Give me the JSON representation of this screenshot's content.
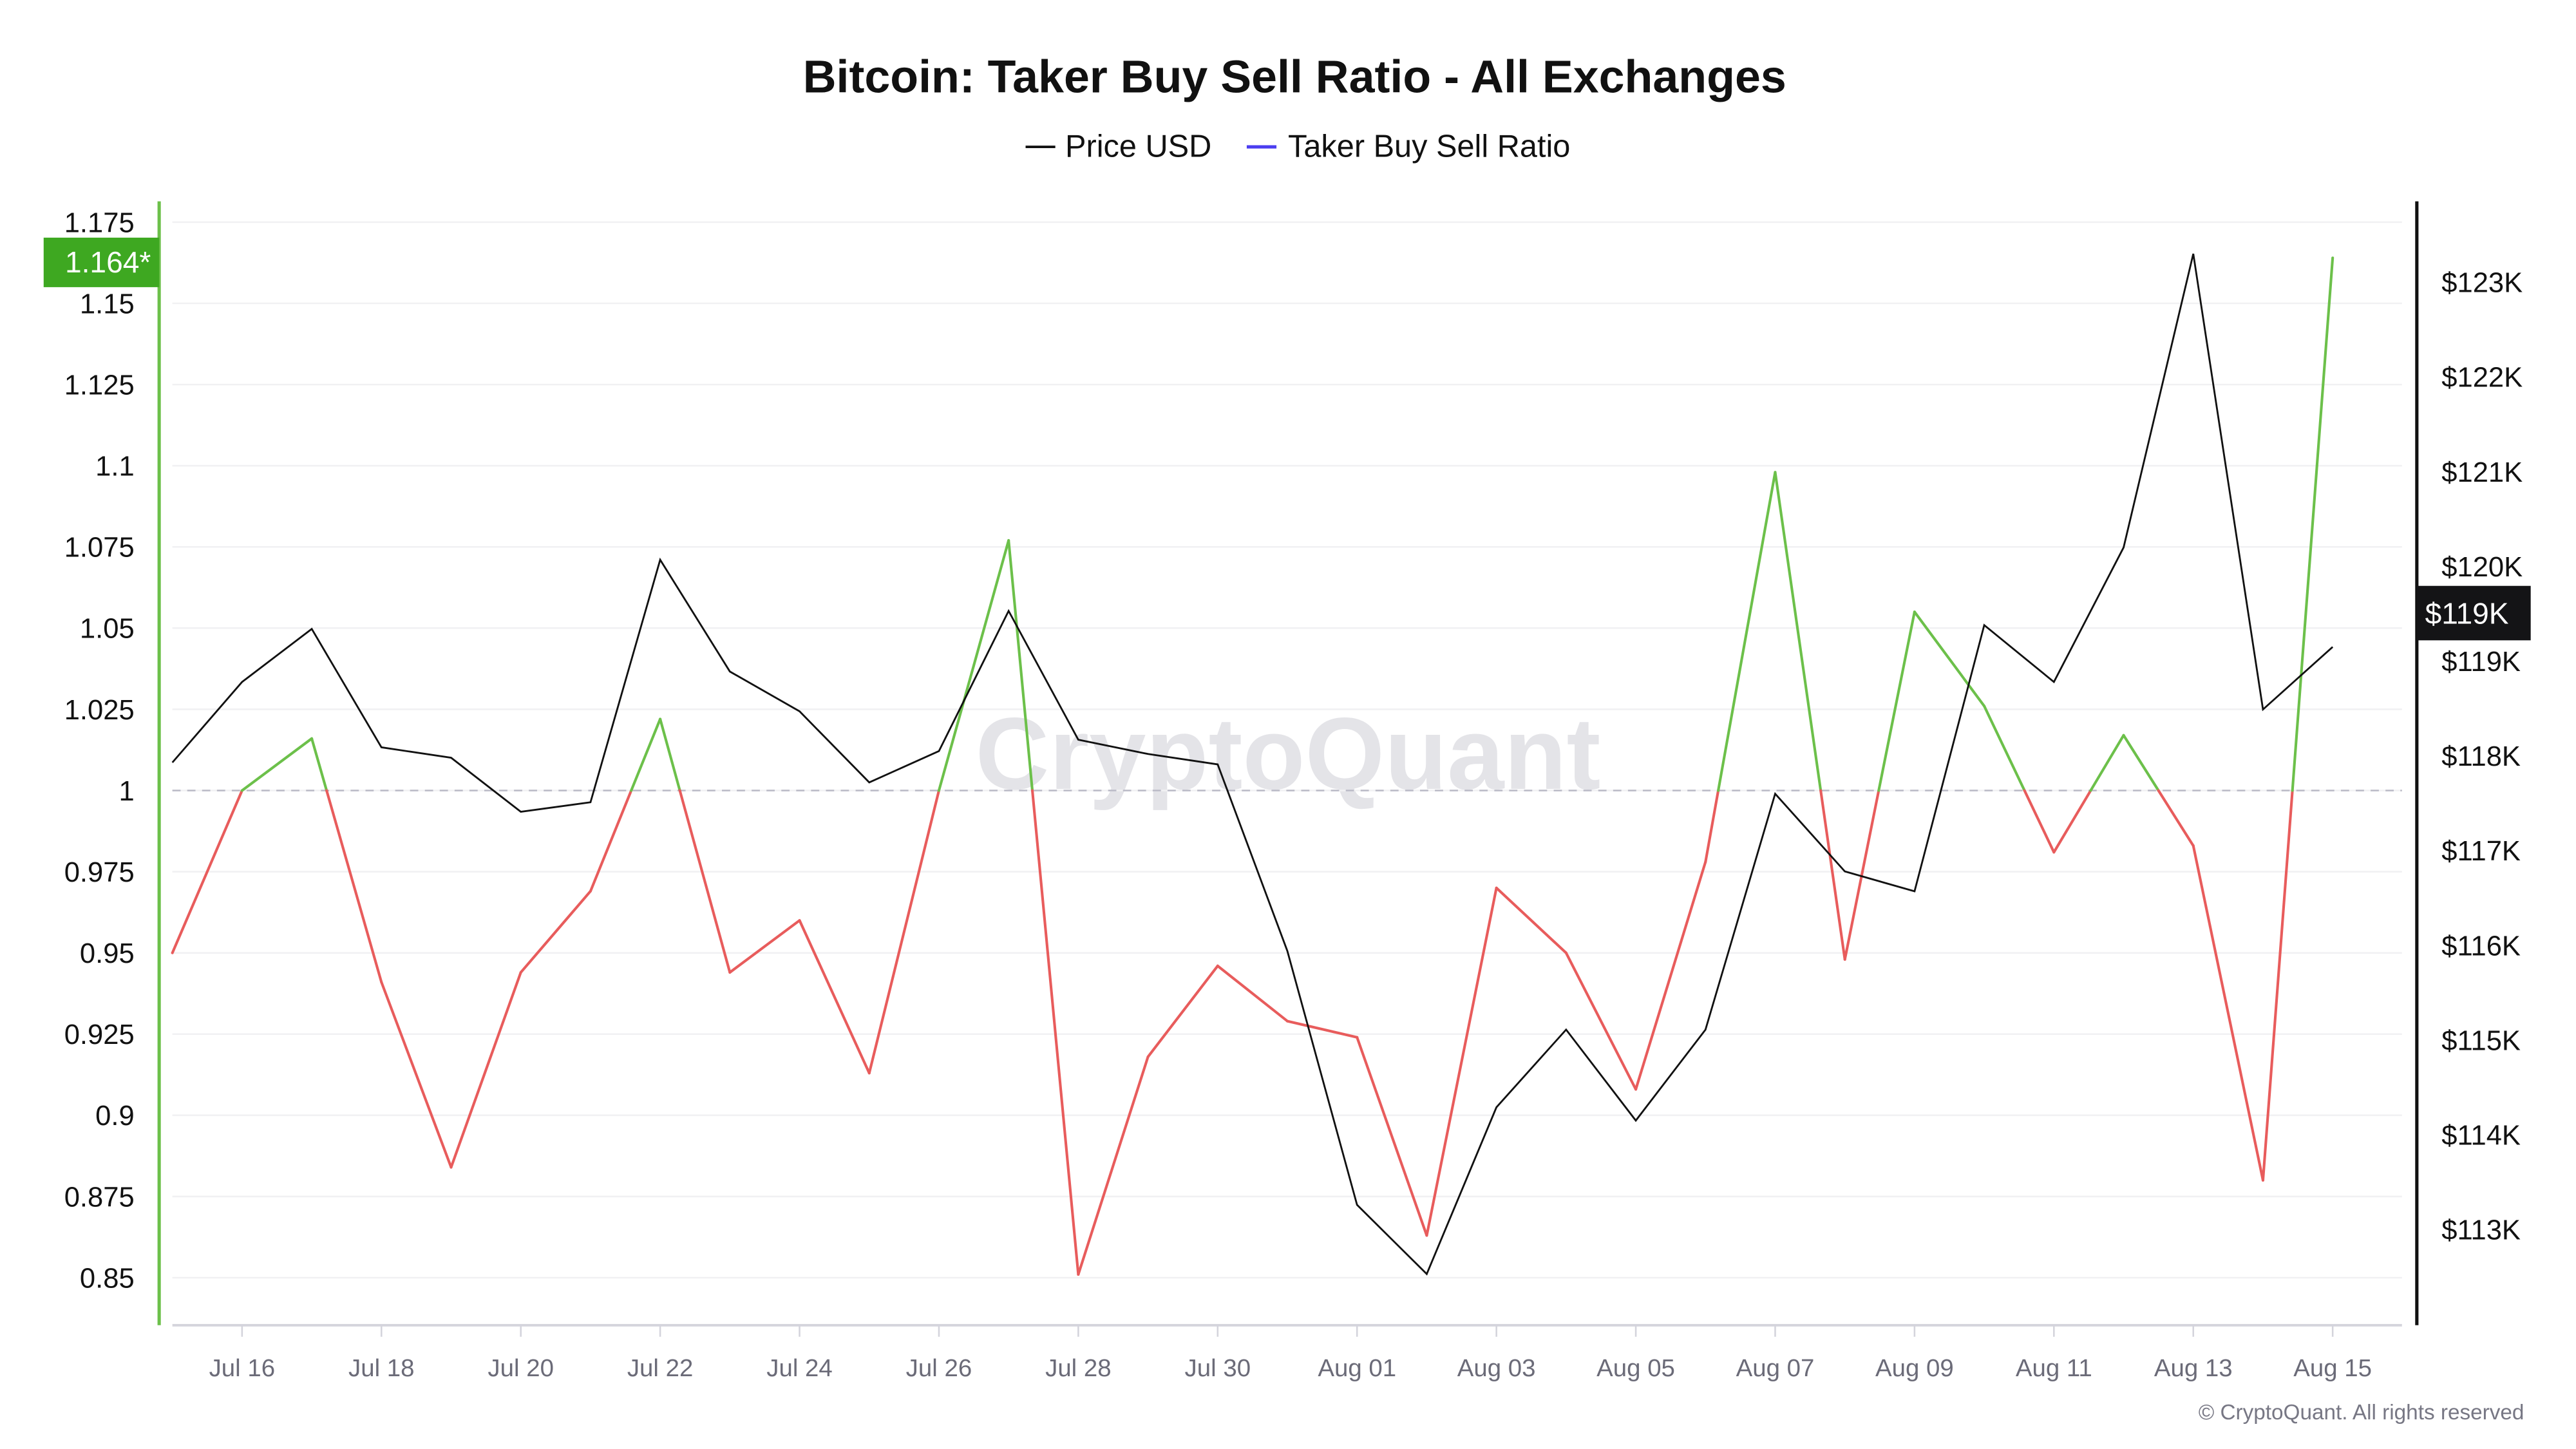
{
  "chart_data": {
    "type": "line",
    "title": "Bitcoin: Taker Buy Sell Ratio - All Exchanges",
    "legend": {
      "placement": "top-center",
      "items": [
        {
          "name": "Price USD",
          "color": "#111111"
        },
        {
          "name": "Taker Buy Sell Ratio",
          "color": "#4b3df0"
        }
      ]
    },
    "x": [
      "Jul 15",
      "Jul 16",
      "Jul 17",
      "Jul 18",
      "Jul 19",
      "Jul 20",
      "Jul 21",
      "Jul 22",
      "Jul 23",
      "Jul 24",
      "Jul 25",
      "Jul 26",
      "Jul 27",
      "Jul 28",
      "Jul 29",
      "Jul 30",
      "Jul 31",
      "Aug 01",
      "Aug 02",
      "Aug 03",
      "Aug 04",
      "Aug 05",
      "Aug 06",
      "Aug 07",
      "Aug 08",
      "Aug 09",
      "Aug 10",
      "Aug 11",
      "Aug 12",
      "Aug 13",
      "Aug 14",
      "Aug 15"
    ],
    "x_tick_labels": [
      "Jul 16",
      "Jul 18",
      "Jul 20",
      "Jul 22",
      "Jul 24",
      "Jul 26",
      "Jul 28",
      "Jul 30",
      "Aug 01",
      "Aug 03",
      "Aug 05",
      "Aug 07",
      "Aug 09",
      "Aug 11",
      "Aug 13",
      "Aug 15"
    ],
    "series": [
      {
        "name": "Taker Buy Sell Ratio",
        "axis": "left",
        "above_color": "#6cc04a",
        "below_color": "#e85c5c",
        "threshold": 1,
        "values": [
          0.95,
          1.0,
          1.016,
          0.941,
          0.884,
          0.944,
          0.969,
          1.022,
          0.944,
          0.96,
          0.913,
          1.0,
          1.077,
          0.851,
          0.918,
          0.946,
          0.929,
          0.924,
          0.863,
          0.97,
          0.95,
          0.908,
          0.978,
          1.098,
          0.948,
          1.055,
          1.026,
          0.981,
          1.017,
          0.983,
          0.88,
          1.164
        ]
      },
      {
        "name": "Price USD",
        "axis": "right",
        "color": "#111111",
        "values": [
          117930,
          118780,
          119340,
          118090,
          117980,
          117410,
          117510,
          120070,
          118890,
          118470,
          117720,
          118050,
          119530,
          118170,
          118020,
          117910,
          115940,
          113260,
          112530,
          114290,
          115110,
          114150,
          115110,
          117600,
          116780,
          116570,
          119380,
          118780,
          120200,
          123300,
          118490,
          119150
        ]
      }
    ],
    "left_axis": {
      "ylim": [
        0.835,
        1.18
      ],
      "ticks": [
        "0.85",
        "0.875",
        "0.9",
        "0.925",
        "0.95",
        "0.975",
        "1",
        "1.025",
        "1.05",
        "1.075",
        "1.1",
        "1.125",
        "1.15",
        "1.175"
      ],
      "current_label": "1.164*",
      "current_value": 1.164,
      "current_color": "#3ea821"
    },
    "right_axis": {
      "ylim": [
        112,
        124
      ],
      "ticks": [
        "$113K",
        "$114K",
        "$115K",
        "$116K",
        "$117K",
        "$118K",
        "$119K",
        "$120K",
        "$121K",
        "$122K",
        "$123K"
      ],
      "current_label": "$119K",
      "current_value": 119150
    },
    "grid": true,
    "reference_line": 1,
    "watermark": "CryptoQuant",
    "footer": "© CryptoQuant. All rights reserved"
  }
}
